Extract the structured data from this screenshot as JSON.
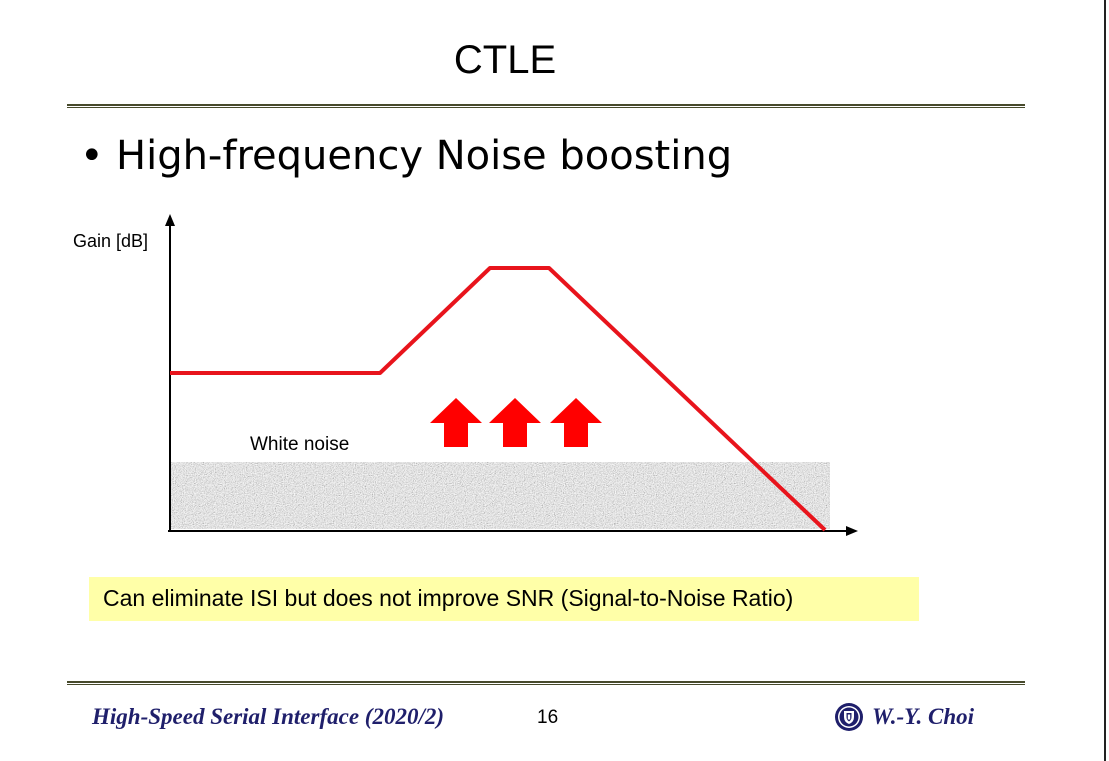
{
  "slide": {
    "title": "CTLE",
    "bullet": "High-frequency Noise boosting",
    "bullet_marker": "•"
  },
  "diagram": {
    "y_axis_label": "Gain [dB]",
    "noise_label": "White noise",
    "curve_color": "#e8141c",
    "arrow_color": "#ff0000",
    "noise_color": "#9a9a9a"
  },
  "note": {
    "text": "Can eliminate ISI but does not improve SNR (Signal-to-Noise Ratio)",
    "background": "#ffffa8"
  },
  "footer": {
    "course": "High-Speed Serial Interface (2020/2)",
    "page": "16",
    "author": "W.-Y. Choi",
    "logo_icon": "university-seal-icon",
    "text_color": "#1f1f6b"
  }
}
